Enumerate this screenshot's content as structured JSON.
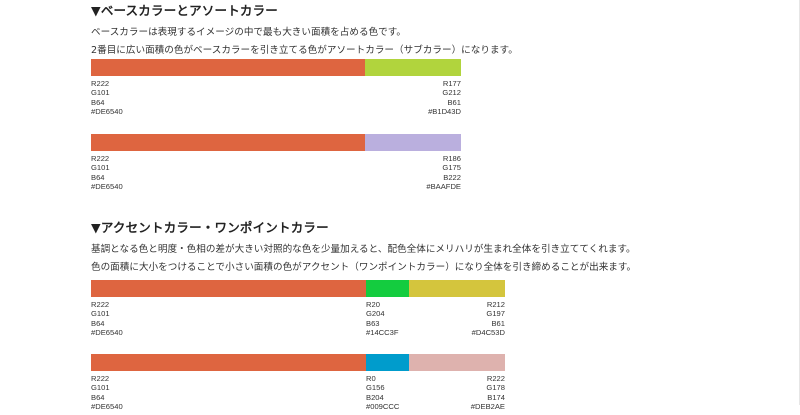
{
  "section1": {
    "heading": "▼ベースカラーとアソートカラー",
    "paragraphs": [
      "ベースカラーは表現するイメージの中で最も大きい面積を占める色です。",
      "2番目に広い面積の色がベースカラーを引き立てる色がアソートカラー（サブカラー）になります。"
    ],
    "palettes": [
      {
        "colors": [
          {
            "hex": "#DE6540",
            "share": 0.74,
            "lines": [
              "R222",
              "G101",
              "B64",
              "#DE6540"
            ]
          },
          {
            "hex": "#B1D43D",
            "share": 0.26,
            "lines": [
              "R177",
              "G212",
              "B61",
              "#B1D43D"
            ]
          }
        ]
      },
      {
        "colors": [
          {
            "hex": "#DE6540",
            "share": 0.74,
            "lines": [
              "R222",
              "G101",
              "B64",
              "#DE6540"
            ]
          },
          {
            "hex": "#BAAFDE",
            "share": 0.26,
            "lines": [
              "R186",
              "G175",
              "B222",
              "#BAAFDE"
            ]
          }
        ]
      }
    ]
  },
  "section2": {
    "heading": "▼アクセントカラー・ワンポイントカラー",
    "paragraphs": [
      "基調となる色と明度・色相の差が大きい対照的な色を少量加えると、配色全体にメリハリが生まれ全体を引き立ててくれます。",
      "色の面積に大小をつけることで小さい面積の色がアクセント（ワンポイントカラー）になり全体を引き締めることが出来ます。"
    ],
    "palettes": [
      {
        "colors": [
          {
            "hex": "#DE6540",
            "share": 0.664,
            "lines": [
              "R222",
              "G101",
              "B64",
              "#DE6540"
            ]
          },
          {
            "hex": "#14CC3F",
            "share": 0.104,
            "lines": [
              "R20",
              "G204",
              "B63",
              "#14CC3F"
            ]
          },
          {
            "hex": "#D4C53D",
            "share": 0.232,
            "lines": [
              "R212",
              "G197",
              "B61",
              "#D4C53D"
            ]
          }
        ]
      },
      {
        "colors": [
          {
            "hex": "#DE6540",
            "share": 0.664,
            "lines": [
              "R222",
              "G101",
              "B64",
              "#DE6540"
            ]
          },
          {
            "hex": "#009CCC",
            "share": 0.104,
            "lines": [
              "R0",
              "G156",
              "B204",
              "#009CCC"
            ]
          },
          {
            "hex": "#DEB2AE",
            "share": 0.232,
            "lines": [
              "R222",
              "G178",
              "B174",
              "#DEB2AE"
            ]
          }
        ]
      }
    ]
  }
}
